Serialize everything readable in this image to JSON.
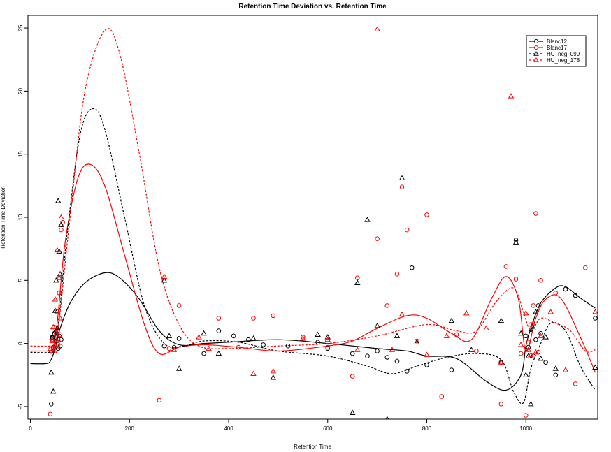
{
  "chart_data": {
    "type": "scatter",
    "title": "Retention Time Deviation vs. Retention Time",
    "xlabel": "Retention Time",
    "ylabel": "Retention Time Deviation",
    "xlim": [
      -5,
      1145
    ],
    "ylim": [
      -6,
      26
    ],
    "xticks": [
      0,
      200,
      400,
      600,
      800,
      1000
    ],
    "yticks": [
      -5,
      0,
      5,
      10,
      15,
      20,
      25
    ],
    "grid": false,
    "legend_position": "top-right",
    "series": [
      {
        "name": "Blanc12",
        "color": "#000000",
        "marker": "circle",
        "line_style": "solid",
        "points": [
          [
            42,
            -4.8
          ],
          [
            44,
            0.5
          ],
          [
            46,
            -0.3
          ],
          [
            48,
            0.8
          ],
          [
            50,
            -0.6
          ],
          [
            52,
            0.2
          ],
          [
            54,
            1.0
          ],
          [
            56,
            -0.4
          ],
          [
            58,
            0.6
          ],
          [
            60,
            -0.2
          ],
          [
            62,
            0.3
          ],
          [
            270,
            -0.2
          ],
          [
            290,
            -0.3
          ],
          [
            300,
            0.4
          ],
          [
            350,
            -0.8
          ],
          [
            380,
            1.0
          ],
          [
            410,
            0.6
          ],
          [
            440,
            0.3
          ],
          [
            470,
            -0.1
          ],
          [
            520,
            -0.2
          ],
          [
            580,
            0.1
          ],
          [
            600,
            -0.4
          ],
          [
            650,
            -0.8
          ],
          [
            680,
            -1.0
          ],
          [
            700,
            -0.6
          ],
          [
            720,
            -1.1
          ],
          [
            740,
            -1.4
          ],
          [
            760,
            -2.2
          ],
          [
            770,
            6.0
          ],
          [
            800,
            -1.7
          ],
          [
            850,
            -2.1
          ],
          [
            950,
            -1.5
          ],
          [
            980,
            8.2
          ],
          [
            1000,
            0.6
          ],
          [
            1005,
            -0.3
          ],
          [
            1010,
            1.1
          ],
          [
            1015,
            -1.0
          ],
          [
            1020,
            0.3
          ],
          [
            1025,
            3.0
          ],
          [
            1030,
            0.8
          ],
          [
            1040,
            -1.5
          ],
          [
            1060,
            -2.5
          ],
          [
            1080,
            4.3
          ],
          [
            1100,
            3.8
          ],
          [
            1140,
            2.0
          ]
        ],
        "curve": [
          [
            0,
            -1.6
          ],
          [
            30,
            -1.6
          ],
          [
            40,
            -1.4
          ],
          [
            50,
            -0.4
          ],
          [
            60,
            1.2
          ],
          [
            80,
            3.2
          ],
          [
            110,
            4.8
          ],
          [
            150,
            5.6
          ],
          [
            180,
            5.2
          ],
          [
            220,
            3.5
          ],
          [
            260,
            1.0
          ],
          [
            300,
            -0.1
          ],
          [
            350,
            0.0
          ],
          [
            400,
            0.1
          ],
          [
            500,
            0.3
          ],
          [
            600,
            0.0
          ],
          [
            700,
            -0.4
          ],
          [
            760,
            -0.6
          ],
          [
            800,
            -1.0
          ],
          [
            860,
            -1.2
          ],
          [
            920,
            -3.0
          ],
          [
            960,
            -3.7
          ],
          [
            990,
            -2.5
          ],
          [
            1000,
            -0.2
          ],
          [
            1010,
            1.2
          ],
          [
            1030,
            3.2
          ],
          [
            1060,
            4.4
          ],
          [
            1080,
            4.5
          ],
          [
            1110,
            3.6
          ],
          [
            1140,
            2.8
          ]
        ]
      },
      {
        "name": "Blanc17",
        "color": "#ff0000",
        "marker": "circle",
        "line_style": "solid",
        "points": [
          [
            40,
            -5.6
          ],
          [
            44,
            0.3
          ],
          [
            46,
            -0.5
          ],
          [
            48,
            1.3
          ],
          [
            50,
            -0.2
          ],
          [
            52,
            0.8
          ],
          [
            54,
            2.5
          ],
          [
            56,
            -0.1
          ],
          [
            58,
            4.0
          ],
          [
            60,
            0.7
          ],
          [
            62,
            9.0
          ],
          [
            65,
            9.6
          ],
          [
            260,
            -4.5
          ],
          [
            280,
            -0.4
          ],
          [
            300,
            3.0
          ],
          [
            380,
            2.0
          ],
          [
            420,
            -0.3
          ],
          [
            450,
            2.0
          ],
          [
            490,
            2.2
          ],
          [
            550,
            0.5
          ],
          [
            600,
            -0.3
          ],
          [
            650,
            -2.6
          ],
          [
            660,
            5.2
          ],
          [
            700,
            8.3
          ],
          [
            720,
            3.0
          ],
          [
            740,
            5.5
          ],
          [
            750,
            12.4
          ],
          [
            760,
            9.0
          ],
          [
            780,
            0.2
          ],
          [
            800,
            10.2
          ],
          [
            830,
            -4.2
          ],
          [
            860,
            0.7
          ],
          [
            900,
            -0.6
          ],
          [
            950,
            -4.8
          ],
          [
            960,
            6.1
          ],
          [
            980,
            5.1
          ],
          [
            990,
            -0.8
          ],
          [
            1000,
            -5.7
          ],
          [
            1005,
            0.1
          ],
          [
            1010,
            1.5
          ],
          [
            1015,
            3.0
          ],
          [
            1020,
            10.3
          ],
          [
            1025,
            -0.7
          ],
          [
            1030,
            5.0
          ],
          [
            1060,
            4.0
          ],
          [
            1100,
            -3.2
          ],
          [
            1120,
            6.0
          ]
        ],
        "curve": [
          [
            0,
            -0.6
          ],
          [
            35,
            -0.6
          ],
          [
            45,
            -0.6
          ],
          [
            55,
            2.0
          ],
          [
            70,
            8.0
          ],
          [
            95,
            13.0
          ],
          [
            120,
            14.2
          ],
          [
            150,
            12.5
          ],
          [
            190,
            7.0
          ],
          [
            230,
            1.5
          ],
          [
            260,
            -0.8
          ],
          [
            300,
            -0.3
          ],
          [
            350,
            -0.1
          ],
          [
            420,
            -0.3
          ],
          [
            500,
            -0.6
          ],
          [
            600,
            -0.2
          ],
          [
            650,
            0.2
          ],
          [
            700,
            1.2
          ],
          [
            760,
            2.2
          ],
          [
            800,
            2.0
          ],
          [
            850,
            0.8
          ],
          [
            890,
            0.3
          ],
          [
            930,
            3.5
          ],
          [
            960,
            5.3
          ],
          [
            985,
            3.5
          ],
          [
            1000,
            -0.6
          ],
          [
            1020,
            2.0
          ],
          [
            1040,
            3.5
          ],
          [
            1070,
            3.6
          ],
          [
            1110,
            0.5
          ],
          [
            1140,
            -2.3
          ]
        ]
      },
      {
        "name": "HU_neg_099",
        "color": "#000000",
        "marker": "triangle",
        "line_style": "dashed",
        "points": [
          [
            42,
            -2.3
          ],
          [
            44,
            0.5
          ],
          [
            46,
            -3.8
          ],
          [
            48,
            0.8
          ],
          [
            50,
            2.6
          ],
          [
            52,
            5.0
          ],
          [
            54,
            1.2
          ],
          [
            56,
            11.3
          ],
          [
            58,
            7.3
          ],
          [
            60,
            5.5
          ],
          [
            62,
            9.4
          ],
          [
            270,
            5.0
          ],
          [
            280,
            0.6
          ],
          [
            300,
            -2.0
          ],
          [
            350,
            0.8
          ],
          [
            380,
            -0.8
          ],
          [
            450,
            0.4
          ],
          [
            490,
            -2.7
          ],
          [
            580,
            0.7
          ],
          [
            600,
            0.5
          ],
          [
            650,
            -5.5
          ],
          [
            660,
            4.8
          ],
          [
            680,
            9.8
          ],
          [
            700,
            1.4
          ],
          [
            720,
            -6.0
          ],
          [
            740,
            0.6
          ],
          [
            750,
            13.1
          ],
          [
            780,
            0.1
          ],
          [
            850,
            1.8
          ],
          [
            890,
            -0.5
          ],
          [
            950,
            1.8
          ],
          [
            980,
            8.0
          ],
          [
            990,
            0.8
          ],
          [
            1000,
            -2.5
          ],
          [
            1005,
            -1.0
          ],
          [
            1010,
            -4.8
          ],
          [
            1015,
            1.2
          ],
          [
            1020,
            2.5
          ],
          [
            1030,
            -1.2
          ],
          [
            1040,
            0.5
          ],
          [
            1060,
            -2.0
          ],
          [
            1140,
            -1.9
          ]
        ],
        "curve": [
          [
            0,
            -0.7
          ],
          [
            40,
            -0.7
          ],
          [
            50,
            -0.3
          ],
          [
            60,
            3.0
          ],
          [
            75,
            9.0
          ],
          [
            100,
            16.5
          ],
          [
            125,
            18.6
          ],
          [
            150,
            17.0
          ],
          [
            190,
            10.0
          ],
          [
            230,
            3.0
          ],
          [
            270,
            0.0
          ],
          [
            310,
            -0.2
          ],
          [
            350,
            0.2
          ],
          [
            420,
            0.1
          ],
          [
            500,
            -0.6
          ],
          [
            600,
            -1.0
          ],
          [
            680,
            -1.8
          ],
          [
            730,
            -2.4
          ],
          [
            780,
            -1.8
          ],
          [
            840,
            -1.1
          ],
          [
            900,
            -0.8
          ],
          [
            950,
            -1.3
          ],
          [
            975,
            -3.8
          ],
          [
            995,
            -4.7
          ],
          [
            1010,
            -2.0
          ],
          [
            1030,
            0.0
          ],
          [
            1050,
            1.6
          ],
          [
            1080,
            1.0
          ],
          [
            1110,
            -1.8
          ],
          [
            1140,
            -3.7
          ]
        ]
      },
      {
        "name": "HU_neg_178",
        "color": "#ff0000",
        "marker": "triangle",
        "line_style": "dashed",
        "points": [
          [
            40,
            -0.4
          ],
          [
            44,
            0.2
          ],
          [
            46,
            1.3
          ],
          [
            48,
            -0.6
          ],
          [
            50,
            3.5
          ],
          [
            52,
            -0.3
          ],
          [
            54,
            7.4
          ],
          [
            56,
            0.4
          ],
          [
            58,
            5.2
          ],
          [
            60,
            2.0
          ],
          [
            62,
            10.0
          ],
          [
            270,
            5.3
          ],
          [
            290,
            -0.5
          ],
          [
            340,
            0.5
          ],
          [
            360,
            -0.4
          ],
          [
            450,
            -2.4
          ],
          [
            490,
            -2.2
          ],
          [
            550,
            0.4
          ],
          [
            600,
            0.3
          ],
          [
            660,
            -0.5
          ],
          [
            700,
            24.9
          ],
          [
            730,
            -0.5
          ],
          [
            750,
            2.3
          ],
          [
            800,
            -0.9
          ],
          [
            840,
            0.6
          ],
          [
            880,
            2.4
          ],
          [
            920,
            1.2
          ],
          [
            950,
            -1.5
          ],
          [
            970,
            19.6
          ],
          [
            990,
            -0.1
          ],
          [
            1000,
            2.4
          ],
          [
            1005,
            -0.5
          ],
          [
            1010,
            -0.9
          ],
          [
            1015,
            1.6
          ],
          [
            1020,
            -0.7
          ],
          [
            1030,
            0.6
          ],
          [
            1050,
            2.5
          ],
          [
            1080,
            -2.1
          ],
          [
            1140,
            2.5
          ]
        ],
        "curve": [
          [
            0,
            -0.2
          ],
          [
            40,
            -0.2
          ],
          [
            50,
            0.0
          ],
          [
            60,
            2.5
          ],
          [
            80,
            10.0
          ],
          [
            110,
            20.0
          ],
          [
            150,
            24.8
          ],
          [
            180,
            23.0
          ],
          [
            220,
            15.0
          ],
          [
            260,
            6.0
          ],
          [
            300,
            1.5
          ],
          [
            340,
            -0.2
          ],
          [
            400,
            -0.4
          ],
          [
            500,
            -0.2
          ],
          [
            600,
            0.0
          ],
          [
            700,
            0.6
          ],
          [
            800,
            1.5
          ],
          [
            860,
            1.0
          ],
          [
            900,
            1.0
          ],
          [
            940,
            3.3
          ],
          [
            975,
            4.4
          ],
          [
            995,
            2.5
          ],
          [
            1010,
            1.0
          ],
          [
            1030,
            2.0
          ],
          [
            1060,
            1.6
          ],
          [
            1090,
            1.0
          ],
          [
            1120,
            -0.6
          ],
          [
            1140,
            -0.5
          ]
        ]
      }
    ]
  }
}
